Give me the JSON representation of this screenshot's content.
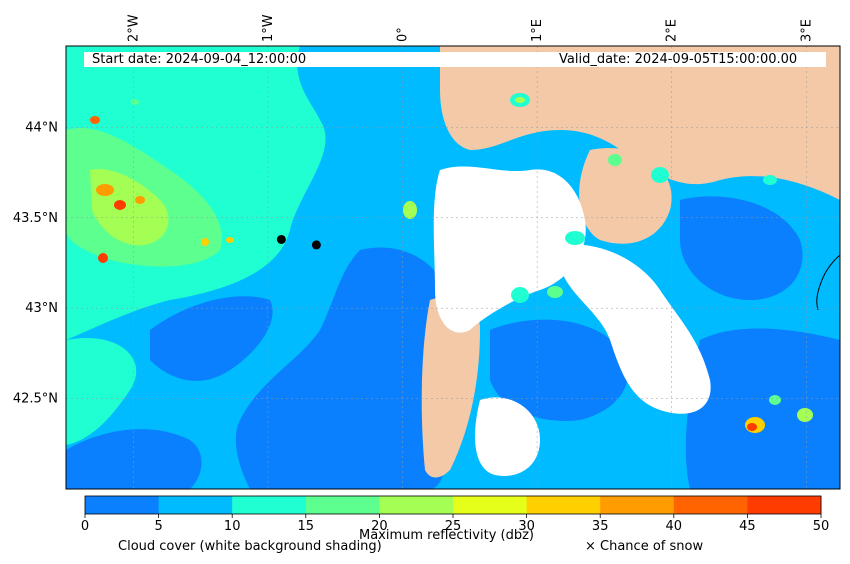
{
  "header": {
    "start_date": "Start date: 2024-09-04_12:00:00",
    "valid_date": "Valid_date: 2024-09-05T15:00:00.00"
  },
  "map": {
    "lon_range": [
      -2.5,
      3.25
    ],
    "lat_range": [
      42.0,
      44.45
    ],
    "lon_ticks": [
      {
        "value": -2,
        "label": "2°W"
      },
      {
        "value": -1,
        "label": "1°W"
      },
      {
        "value": 0,
        "label": "0°"
      },
      {
        "value": 1,
        "label": "1°E"
      },
      {
        "value": 2,
        "label": "2°E"
      },
      {
        "value": 3,
        "label": "3°E"
      }
    ],
    "lat_ticks": [
      {
        "value": 44.0,
        "label": "44°N"
      },
      {
        "value": 43.5,
        "label": "43.5°N"
      },
      {
        "value": 43.0,
        "label": "43°N"
      },
      {
        "value": 42.5,
        "label": "42.5°N"
      }
    ],
    "markers": [
      {
        "lon": -0.9,
        "lat": 43.38
      },
      {
        "lon": -0.64,
        "lat": 43.35
      }
    ]
  },
  "colorbar": {
    "ticks": [
      "0",
      "5",
      "10",
      "15",
      "20",
      "25",
      "30",
      "35",
      "40",
      "45",
      "50"
    ],
    "colors": [
      "#0a80ff",
      "#00bbff",
      "#1fffd2",
      "#5dff8f",
      "#a4ff55",
      "#e6ff1a",
      "#ffd000",
      "#ff9c00",
      "#ff6400",
      "#ff3c00"
    ]
  },
  "legend": {
    "cloud_cover": "Cloud cover (white background shading)",
    "reflectivity": "Maximum reflectivity (dbz)",
    "snow": "× Chance of snow"
  },
  "colors": {
    "land_clear": "#f3c9a8",
    "cloud_white": "#ffffff",
    "marker": "#000000"
  }
}
